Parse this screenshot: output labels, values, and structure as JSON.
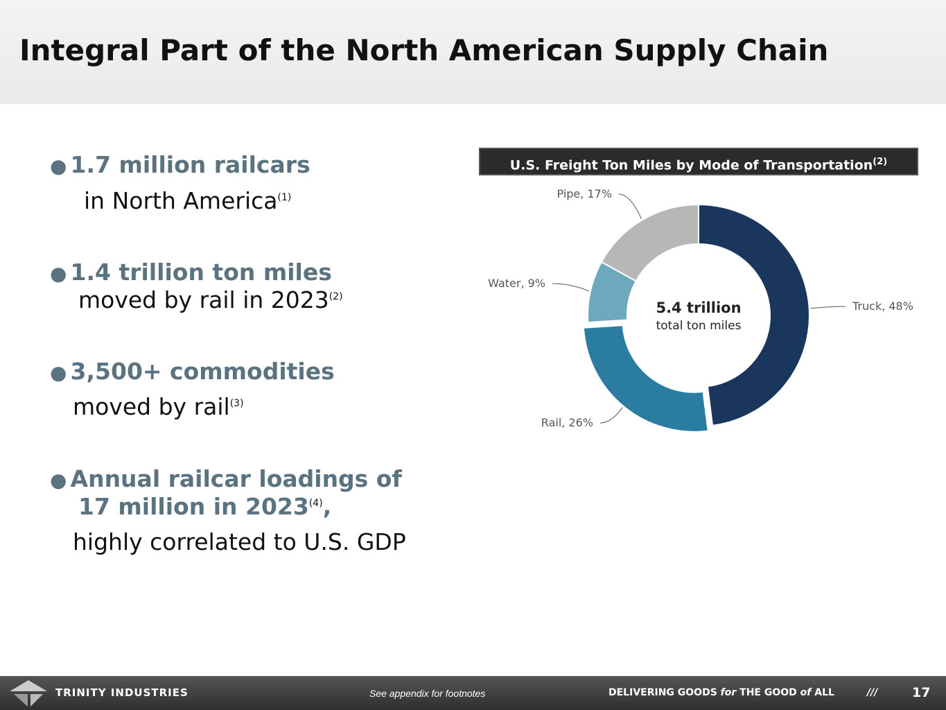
{
  "header": {
    "title": "Integral Part of the North American Supply Chain"
  },
  "bullets": [
    {
      "head": "1.7 million railcars",
      "body": "in North America",
      "note": "(1)"
    },
    {
      "head": "1.4 trillion ton miles",
      "body": "moved by rail in 2023",
      "note": "(2)"
    },
    {
      "head": "3,500+ commodities",
      "body": "moved by rail",
      "note": "(3)"
    },
    {
      "head_lines": [
        "Annual railcar loadings of",
        "17 million in 2023"
      ],
      "head_note": "(4)",
      "head_tail": ",",
      "body": "highly correlated to U.S. GDP"
    }
  ],
  "chart_data": {
    "type": "donut",
    "title": "U.S. Freight Ton Miles by Mode of Transportation",
    "title_note": "(2)",
    "values": [
      48,
      26,
      9,
      17
    ],
    "value_labels": [
      "Truck, 48%",
      "Rail, 26%",
      "Water, 9%",
      "Pipe, 17%"
    ],
    "colors": [
      "#1b365d",
      "#2a7ca0",
      "#6ea8bf",
      "#b7b7b7"
    ],
    "center_title": "5.4 trillion",
    "center_subtitle": "total ton miles"
  },
  "footer": {
    "brand": "TRINITY INDUSTRIES",
    "note": "See appendix for footnotes",
    "tagline": [
      "DELIVERING GOODS ",
      "for",
      " THE GOOD ",
      "of",
      " ALL"
    ],
    "divider": "///",
    "page": "17"
  }
}
